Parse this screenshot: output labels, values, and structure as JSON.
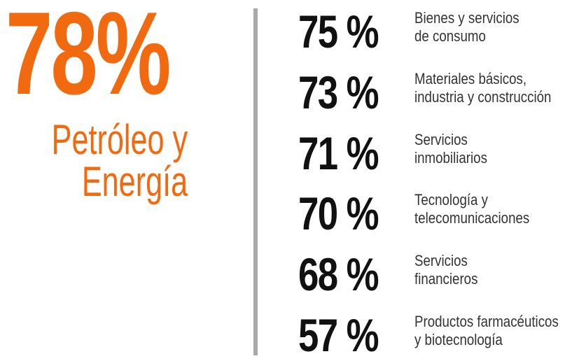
{
  "highlight": {
    "value": "78%",
    "label": [
      "Petróleo y",
      "Energía"
    ]
  },
  "items": [
    {
      "value": "75 %",
      "label": [
        "Bienes y servicios",
        "de consumo"
      ]
    },
    {
      "value": "73 %",
      "label": [
        "Materiales básicos,",
        "industria y construcción"
      ]
    },
    {
      "value": "71 %",
      "label": [
        "Servicios",
        "inmobiliarios"
      ]
    },
    {
      "value": "70 %",
      "label": [
        "Tecnología y",
        "telecomunicaciones"
      ]
    },
    {
      "value": "68 %",
      "label": [
        "Servicios",
        "financieros"
      ]
    },
    {
      "value": "57 %",
      "label": [
        "Productos farmacéuticos",
        "y biotecnología"
      ]
    }
  ]
}
